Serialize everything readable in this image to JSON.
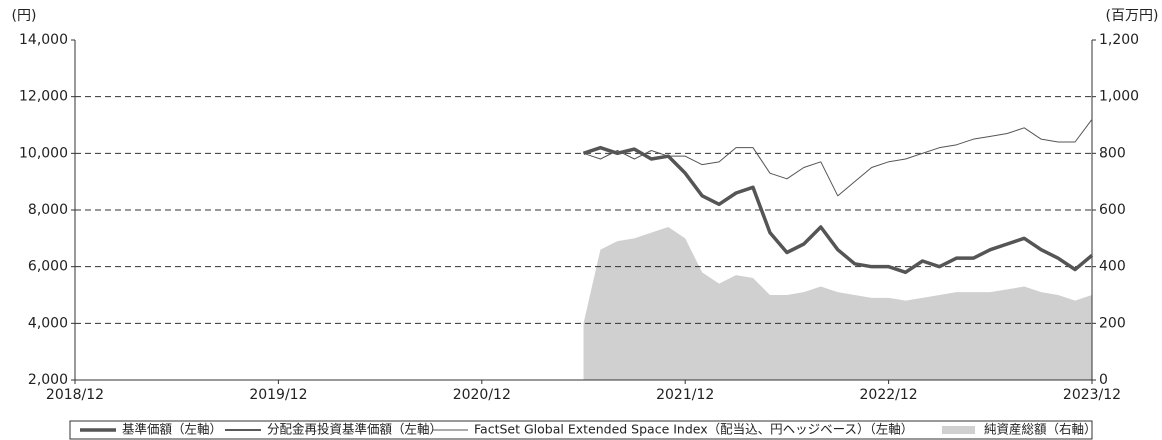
{
  "chart_data": {
    "type": "line",
    "y_label": "(円)",
    "y2_label": "(百万円)",
    "x": [
      "2021/06",
      "2021/07",
      "2021/08",
      "2021/09",
      "2021/10",
      "2021/11",
      "2021/12",
      "2022/01",
      "2022/02",
      "2022/03",
      "2022/04",
      "2022/05",
      "2022/06",
      "2022/07",
      "2022/08",
      "2022/09",
      "2022/10",
      "2022/11",
      "2022/12",
      "2023/01",
      "2023/02",
      "2023/03",
      "2023/04",
      "2023/05",
      "2023/06",
      "2023/07",
      "2023/08",
      "2023/09",
      "2023/10",
      "2023/11",
      "2023/12"
    ],
    "series": [
      {
        "name": "基準価額（左軸）",
        "color": "#555555",
        "values": [
          10000,
          10200,
          10000,
          10150,
          9800,
          9900,
          9300,
          8500,
          8200,
          8600,
          8800,
          7200,
          6500,
          6800,
          7400,
          6600,
          6100,
          6000,
          6000,
          5800,
          6200,
          6000,
          6300,
          6300,
          6600,
          6800,
          7000,
          6600,
          6300,
          5900,
          6400
        ]
      },
      {
        "name": "分配金再投資基準価額（左軸）",
        "color": "#222222",
        "values": [
          10000,
          10200,
          10000,
          10150,
          9800,
          9900,
          9300,
          8500,
          8200,
          8600,
          8800,
          7200,
          6500,
          6800,
          7400,
          6600,
          6100,
          6000,
          6000,
          5800,
          6200,
          6000,
          6300,
          6300,
          6600,
          6800,
          7000,
          6600,
          6300,
          5900,
          6400
        ]
      },
      {
        "name": "FactSet Global Extended Space Index（配当込、円ヘッジベース）（左軸）",
        "color": "#555555",
        "values": [
          10000,
          9800,
          10100,
          9800,
          10100,
          9900,
          9900,
          9600,
          9700,
          10200,
          10200,
          9300,
          9100,
          9500,
          9700,
          8500,
          9000,
          9500,
          9700,
          9800,
          10000,
          10200,
          10300,
          10500,
          10600,
          10700,
          10900,
          10500,
          10400,
          10400,
          11200
        ]
      },
      {
        "name": "純資産総額（右軸）",
        "color": "#d0d0d0",
        "axis": "y2",
        "values": [
          200,
          460,
          490,
          500,
          520,
          540,
          500,
          380,
          340,
          370,
          360,
          300,
          300,
          310,
          330,
          310,
          300,
          290,
          290,
          280,
          290,
          300,
          310,
          310,
          310,
          320,
          330,
          310,
          300,
          280,
          300
        ]
      }
    ],
    "xticks": [
      "2018/12",
      "2019/12",
      "2020/12",
      "2021/12",
      "2022/12",
      "2023/12"
    ],
    "ylim": [
      2000,
      14000
    ],
    "yticks": [
      {
        "value": 2000,
        "label": "2,000"
      },
      {
        "value": 4000,
        "label": "4,000"
      },
      {
        "value": 6000,
        "label": "6,000"
      },
      {
        "value": 8000,
        "label": "8,000"
      },
      {
        "value": 10000,
        "label": "10,000"
      },
      {
        "value": 12000,
        "label": "12,000"
      },
      {
        "value": 14000,
        "label": "14,000"
      }
    ],
    "y2lim": [
      0,
      1200
    ],
    "y2ticks": [
      0,
      200,
      400,
      600,
      800,
      {
        "value": 1000,
        "label": "1,000"
      },
      {
        "value": 1200,
        "label": "1,200"
      }
    ],
    "grid": true
  }
}
